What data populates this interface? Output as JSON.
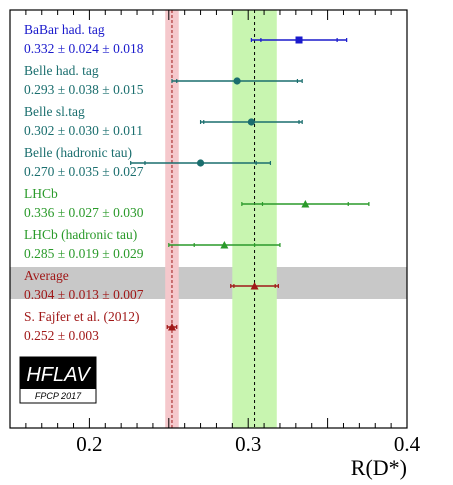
{
  "chart_data": {
    "type": "scatter",
    "xlabel": "R(D*)",
    "xlim": [
      0.15,
      0.4
    ],
    "xticks": [
      "0.2",
      "0.3",
      "0.4"
    ],
    "xtick_values": [
      0.2,
      0.3,
      0.4
    ],
    "grid": false,
    "average_band": {
      "center": 0.304,
      "lo": 0.29,
      "hi": 0.318,
      "color": "#c8f5b0"
    },
    "sm_band": {
      "center": 0.252,
      "lo": 0.249,
      "hi": 0.255,
      "color": "#f5c8cc"
    },
    "measurements": [
      {
        "name": "BaBar had. tag",
        "value_text": "0.332 ± 0.024 ± 0.018",
        "value": 0.332,
        "stat": 0.024,
        "total": 0.03,
        "marker": "square",
        "color": "#1a1acc"
      },
      {
        "name": "Belle had. tag",
        "value_text": "0.293 ± 0.038 ± 0.015",
        "value": 0.293,
        "stat": 0.038,
        "total": 0.041,
        "marker": "circle",
        "color": "#1a6e6e"
      },
      {
        "name": "Belle sl.tag",
        "value_text": "0.302 ± 0.030 ± 0.011",
        "value": 0.302,
        "stat": 0.03,
        "total": 0.032,
        "marker": "circle",
        "color": "#1a6e6e"
      },
      {
        "name": "Belle (hadronic tau)",
        "value_text": "0.270 ± 0.035 ± 0.027",
        "value": 0.27,
        "stat": 0.035,
        "total": 0.044,
        "marker": "circle",
        "color": "#1a6e6e"
      },
      {
        "name": "LHCb",
        "value_text": "0.336 ± 0.027 ± 0.030",
        "value": 0.336,
        "stat": 0.027,
        "total": 0.04,
        "marker": "triangle",
        "color": "#2a9a2a"
      },
      {
        "name": "LHCb (hadronic tau)",
        "value_text": "0.285 ± 0.019 ± 0.029",
        "value": 0.285,
        "stat": 0.019,
        "total": 0.035,
        "marker": "triangle",
        "color": "#2a9a2a"
      },
      {
        "name": "Average",
        "value_text": "0.304 ± 0.013 ± 0.007",
        "value": 0.304,
        "stat": 0.013,
        "total": 0.015,
        "marker": "triangle",
        "color": "#a01818",
        "highlight": true
      },
      {
        "name": "S. Fajfer et al. (2012)",
        "value_text": "0.252 ± 0.003",
        "value": 0.252,
        "stat": 0.003,
        "total": 0.003,
        "marker": "triangle",
        "color": "#a01818"
      }
    ],
    "logo": {
      "title": "HFLAV",
      "subtitle": "FPCP 2017"
    }
  }
}
